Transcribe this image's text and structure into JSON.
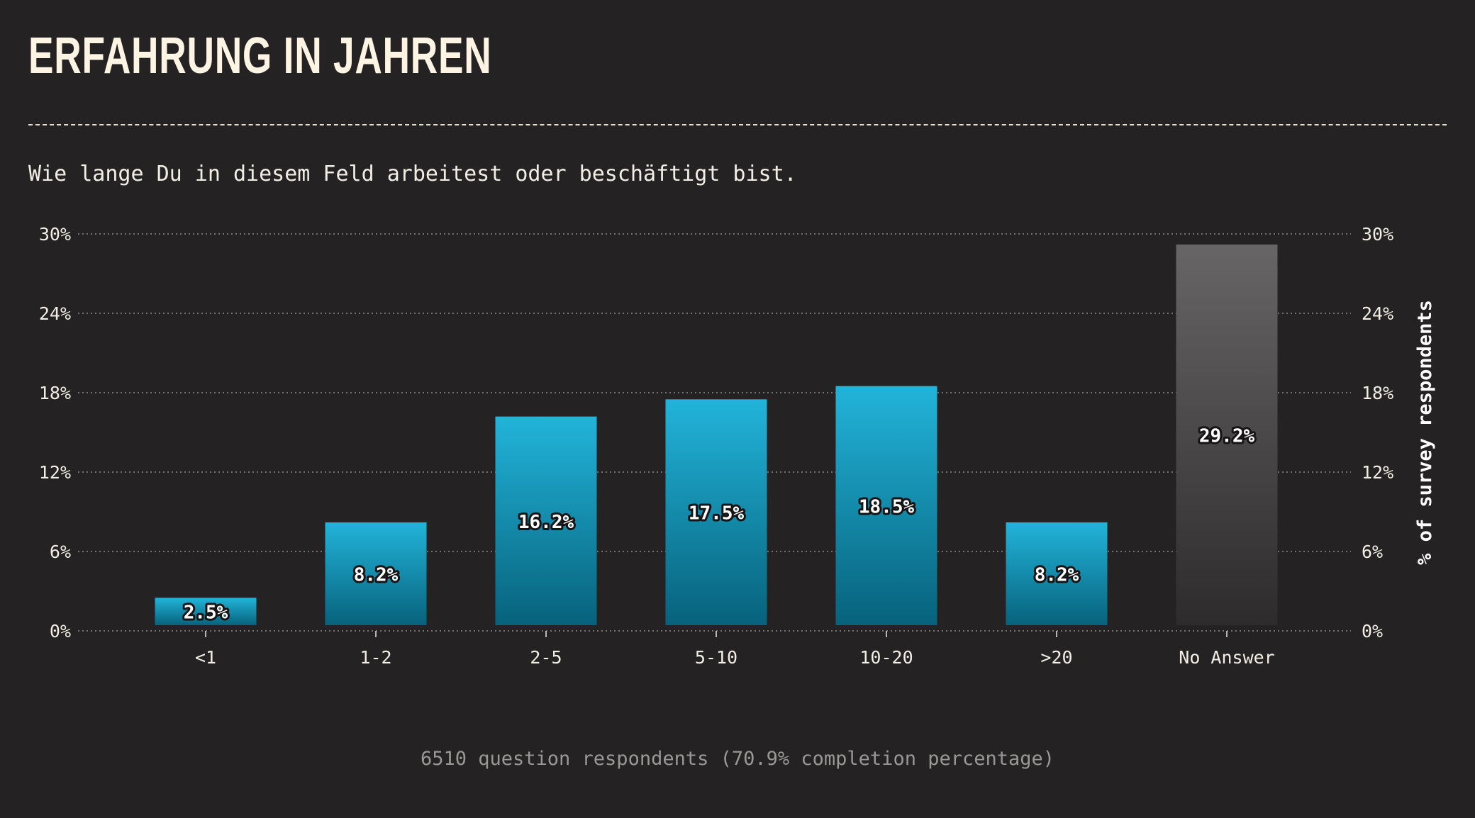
{
  "header": {
    "title": "Erfahrung in Jahren",
    "subtitle": "Wie lange Du in diesem Feld arbeitest oder beschäftigt bist."
  },
  "footer": {
    "note": "6510 question respondents (70.9% completion percentage)"
  },
  "colors": {
    "background": "#252223",
    "bar_top": "#22b4da",
    "bar_bottom": "#07627c",
    "na_top": "#676566",
    "na_bottom": "#2e2b2c",
    "text": "#fdf4e3"
  },
  "chart_data": {
    "type": "bar",
    "categories": [
      "<1",
      "1-2",
      "2-5",
      "5-10",
      "10-20",
      ">20",
      "No Answer"
    ],
    "values": [
      2.5,
      8.2,
      16.2,
      17.5,
      18.5,
      8.2,
      29.2
    ],
    "data_labels": [
      "2.5%",
      "8.2%",
      "16.2%",
      "17.5%",
      "18.5%",
      "8.2%",
      "29.2%"
    ],
    "highlight": [
      false,
      false,
      false,
      false,
      false,
      false,
      true
    ],
    "yticks": [
      0,
      6,
      12,
      18,
      24,
      30
    ],
    "ytick_labels": [
      "0%",
      "6%",
      "12%",
      "18%",
      "24%",
      "30%"
    ],
    "ylim": [
      0,
      30
    ],
    "ylabel": "% of survey respondents",
    "xlabel": "",
    "grid": true,
    "y_axis": "both sides"
  }
}
